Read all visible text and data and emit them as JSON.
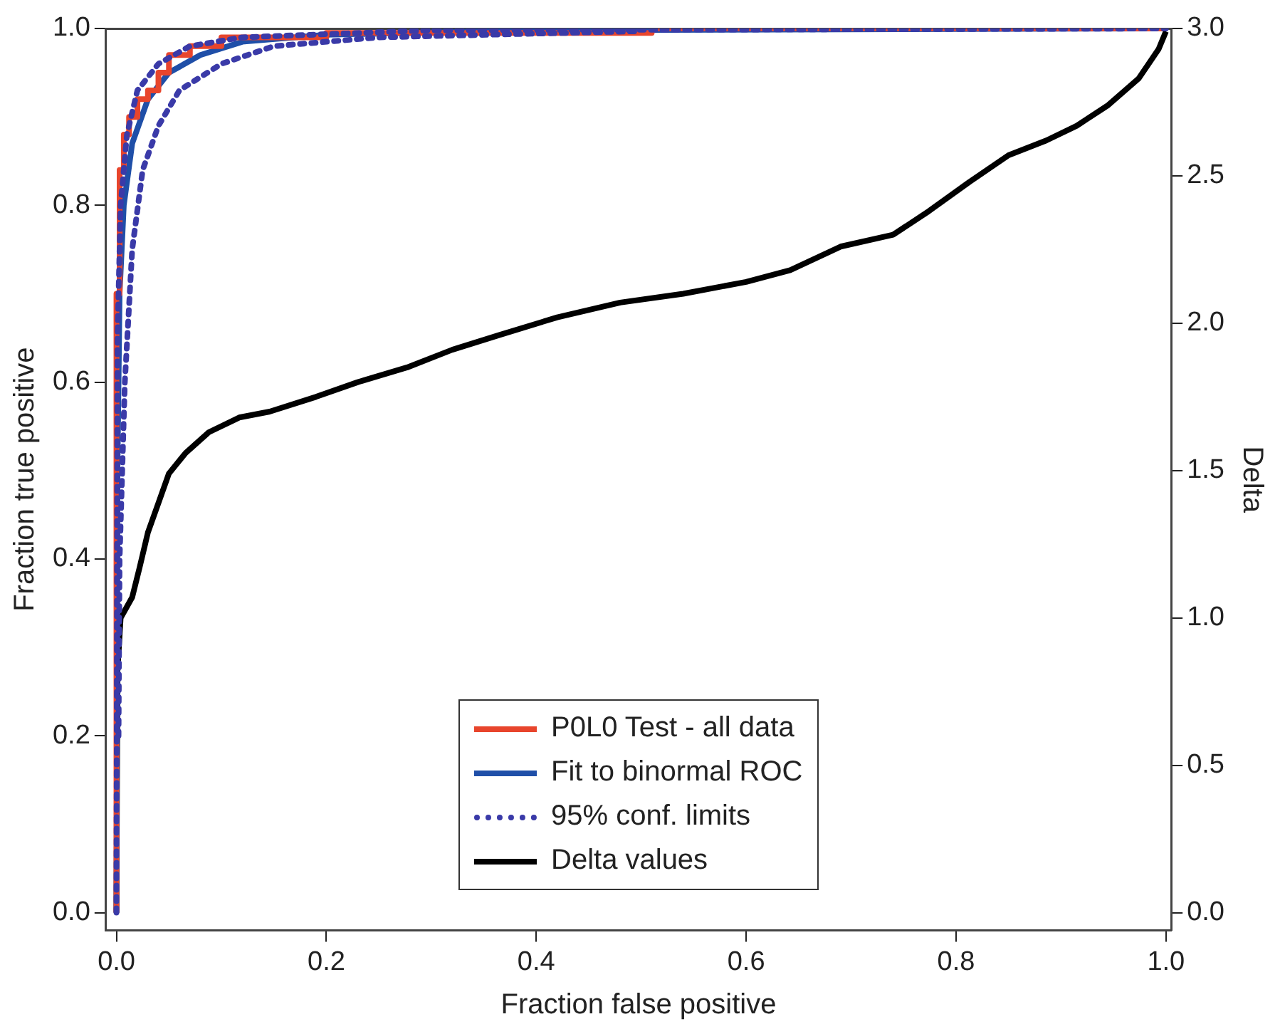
{
  "chart_data": {
    "type": "line",
    "xlabel": "Fraction false positive",
    "ylabel": "Fraction true positive",
    "y2label": "Delta",
    "xlim": [
      -0.01,
      1.005
    ],
    "ylim": [
      -0.02,
      1.0
    ],
    "y2lim": [
      -0.06,
      3.0
    ],
    "xticks": [
      {
        "value": 0,
        "label": "0.0"
      },
      {
        "value": 0.2,
        "label": "0.2"
      },
      {
        "value": 0.4,
        "label": "0.4"
      },
      {
        "value": 0.6,
        "label": "0.6"
      },
      {
        "value": 0.8,
        "label": "0.8"
      },
      {
        "value": 1,
        "label": "1.0"
      }
    ],
    "yticks": [
      {
        "value": 0,
        "label": "0.0"
      },
      {
        "value": 0.2,
        "label": "0.2"
      },
      {
        "value": 0.4,
        "label": "0.4"
      },
      {
        "value": 0.6,
        "label": "0.6"
      },
      {
        "value": 0.8,
        "label": "0.8"
      },
      {
        "value": 1,
        "label": "1.0"
      }
    ],
    "y2ticks": [
      {
        "value": 0,
        "label": "0.0"
      },
      {
        "value": 0.5,
        "label": "0.5"
      },
      {
        "value": 1,
        "label": "1.0"
      },
      {
        "value": 1.5,
        "label": "1.5"
      },
      {
        "value": 2,
        "label": "2.0"
      },
      {
        "value": 2.5,
        "label": "2.5"
      },
      {
        "value": 3,
        "label": "3.0"
      }
    ],
    "grid": false,
    "legend": "bottom",
    "marker": "none",
    "series": [
      {
        "name": "P0L0 Test - all data",
        "type": "step",
        "color": "#e8452c",
        "line_style": "solid",
        "x": [
          0,
          0,
          0.003,
          0.007,
          0.012,
          0.02,
          0.03,
          0.04,
          0.05,
          0.07,
          0.1,
          0.2,
          0.51,
          0.51,
          1
        ],
        "values": [
          0,
          0.7,
          0.84,
          0.88,
          0.9,
          0.92,
          0.93,
          0.95,
          0.97,
          0.98,
          0.99,
          0.995,
          0.995,
          1,
          1
        ]
      },
      {
        "name": "Fit to binormal ROC",
        "color": "#1f4fa8",
        "line_style": "solid",
        "x": [
          0,
          0.001,
          0.003,
          0.007,
          0.015,
          0.03,
          0.05,
          0.08,
          0.12,
          0.2,
          0.4,
          1
        ],
        "values": [
          0,
          0.5,
          0.7,
          0.8,
          0.87,
          0.92,
          0.95,
          0.97,
          0.985,
          0.993,
          0.998,
          1
        ]
      },
      {
        "name": "95% conf. limits",
        "color": "#3a3aa8",
        "line_style": "dotted",
        "x": [
          0,
          0.001,
          0.004,
          0.01,
          0.02,
          0.04,
          0.07,
          0.12,
          0.3,
          1
        ],
        "values": [
          0,
          0.65,
          0.8,
          0.88,
          0.93,
          0.96,
          0.98,
          0.99,
          0.998,
          1
        ]
      },
      {
        "color": "#3a3aa8",
        "line_style": "dotted",
        "x": [
          0.002,
          0.003,
          0.008,
          0.015,
          0.025,
          0.04,
          0.06,
          0.1,
          0.15,
          0.25,
          0.5
        ],
        "values": [
          0.2,
          0.4,
          0.6,
          0.75,
          0.84,
          0.89,
          0.93,
          0.96,
          0.98,
          0.99,
          0.997
        ]
      },
      {
        "name": "Delta values",
        "axis": "y2",
        "color": "#000000",
        "line_style": "solid",
        "x": [
          0,
          0.001,
          0.004,
          0.015,
          0.022,
          0.03,
          0.04,
          0.05,
          0.066,
          0.088,
          0.117,
          0.146,
          0.19,
          0.23,
          0.277,
          0.32,
          0.365,
          0.42,
          0.48,
          0.54,
          0.6,
          0.642,
          0.69,
          0.74,
          0.774,
          0.813,
          0.85,
          0.886,
          0.915,
          0.945,
          0.974,
          0.993,
          1
        ],
        "values": [
          0,
          0.82,
          1.0,
          1.07,
          1.17,
          1.29,
          1.39,
          1.49,
          1.56,
          1.63,
          1.68,
          1.7,
          1.75,
          1.8,
          1.85,
          1.91,
          1.96,
          2.02,
          2.07,
          2.1,
          2.14,
          2.18,
          2.26,
          2.3,
          2.38,
          2.48,
          2.57,
          2.62,
          2.67,
          2.74,
          2.83,
          2.93,
          2.99
        ]
      }
    ]
  }
}
